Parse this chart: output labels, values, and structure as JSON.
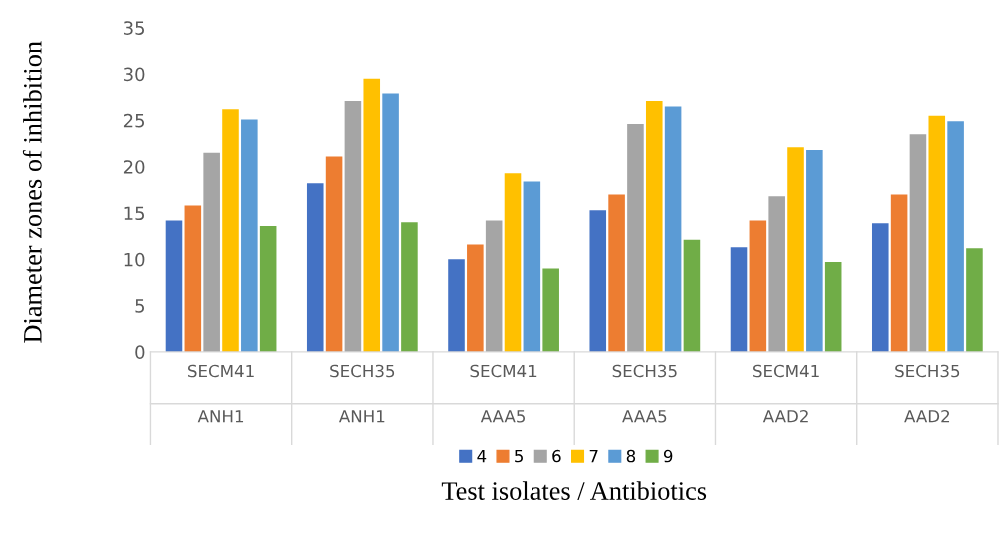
{
  "chart_data": {
    "type": "bar",
    "xlabel": "Test isolates / Antibiotics",
    "ylabel": "Diameter zones of inhibition",
    "categories": [
      "SECM41\nANH1",
      "SECH35\nANH1",
      "SECM41\nAAA5",
      "SECH35\nAAA5",
      "SECM41\nAAD2",
      "SECH35\nAAD2"
    ],
    "series": [
      {
        "name": "4",
        "color": "#4472c4",
        "values": [
          14.2,
          18.2,
          10.0,
          15.3,
          11.3,
          13.9
        ]
      },
      {
        "name": "5",
        "color": "#ed7d31",
        "values": [
          15.8,
          21.1,
          11.6,
          17.0,
          14.2,
          17.0
        ]
      },
      {
        "name": "6",
        "color": "#a5a5a5",
        "values": [
          21.5,
          27.1,
          14.2,
          24.6,
          16.8,
          23.5
        ]
      },
      {
        "name": "7",
        "color": "#ffc000",
        "values": [
          26.2,
          29.5,
          19.3,
          27.1,
          22.1,
          25.5
        ]
      },
      {
        "name": "8",
        "color": "#5b9bd5",
        "values": [
          25.1,
          27.9,
          18.4,
          26.5,
          21.8,
          24.9
        ]
      },
      {
        "name": "9",
        "color": "#70ad47",
        "values": [
          13.6,
          14.0,
          9.0,
          12.1,
          9.7,
          11.2
        ]
      }
    ],
    "ylim": [
      0,
      35
    ],
    "yticks": [
      0,
      5,
      10,
      15,
      20,
      25,
      30,
      35
    ],
    "grid": false,
    "legend": "bottom"
  }
}
